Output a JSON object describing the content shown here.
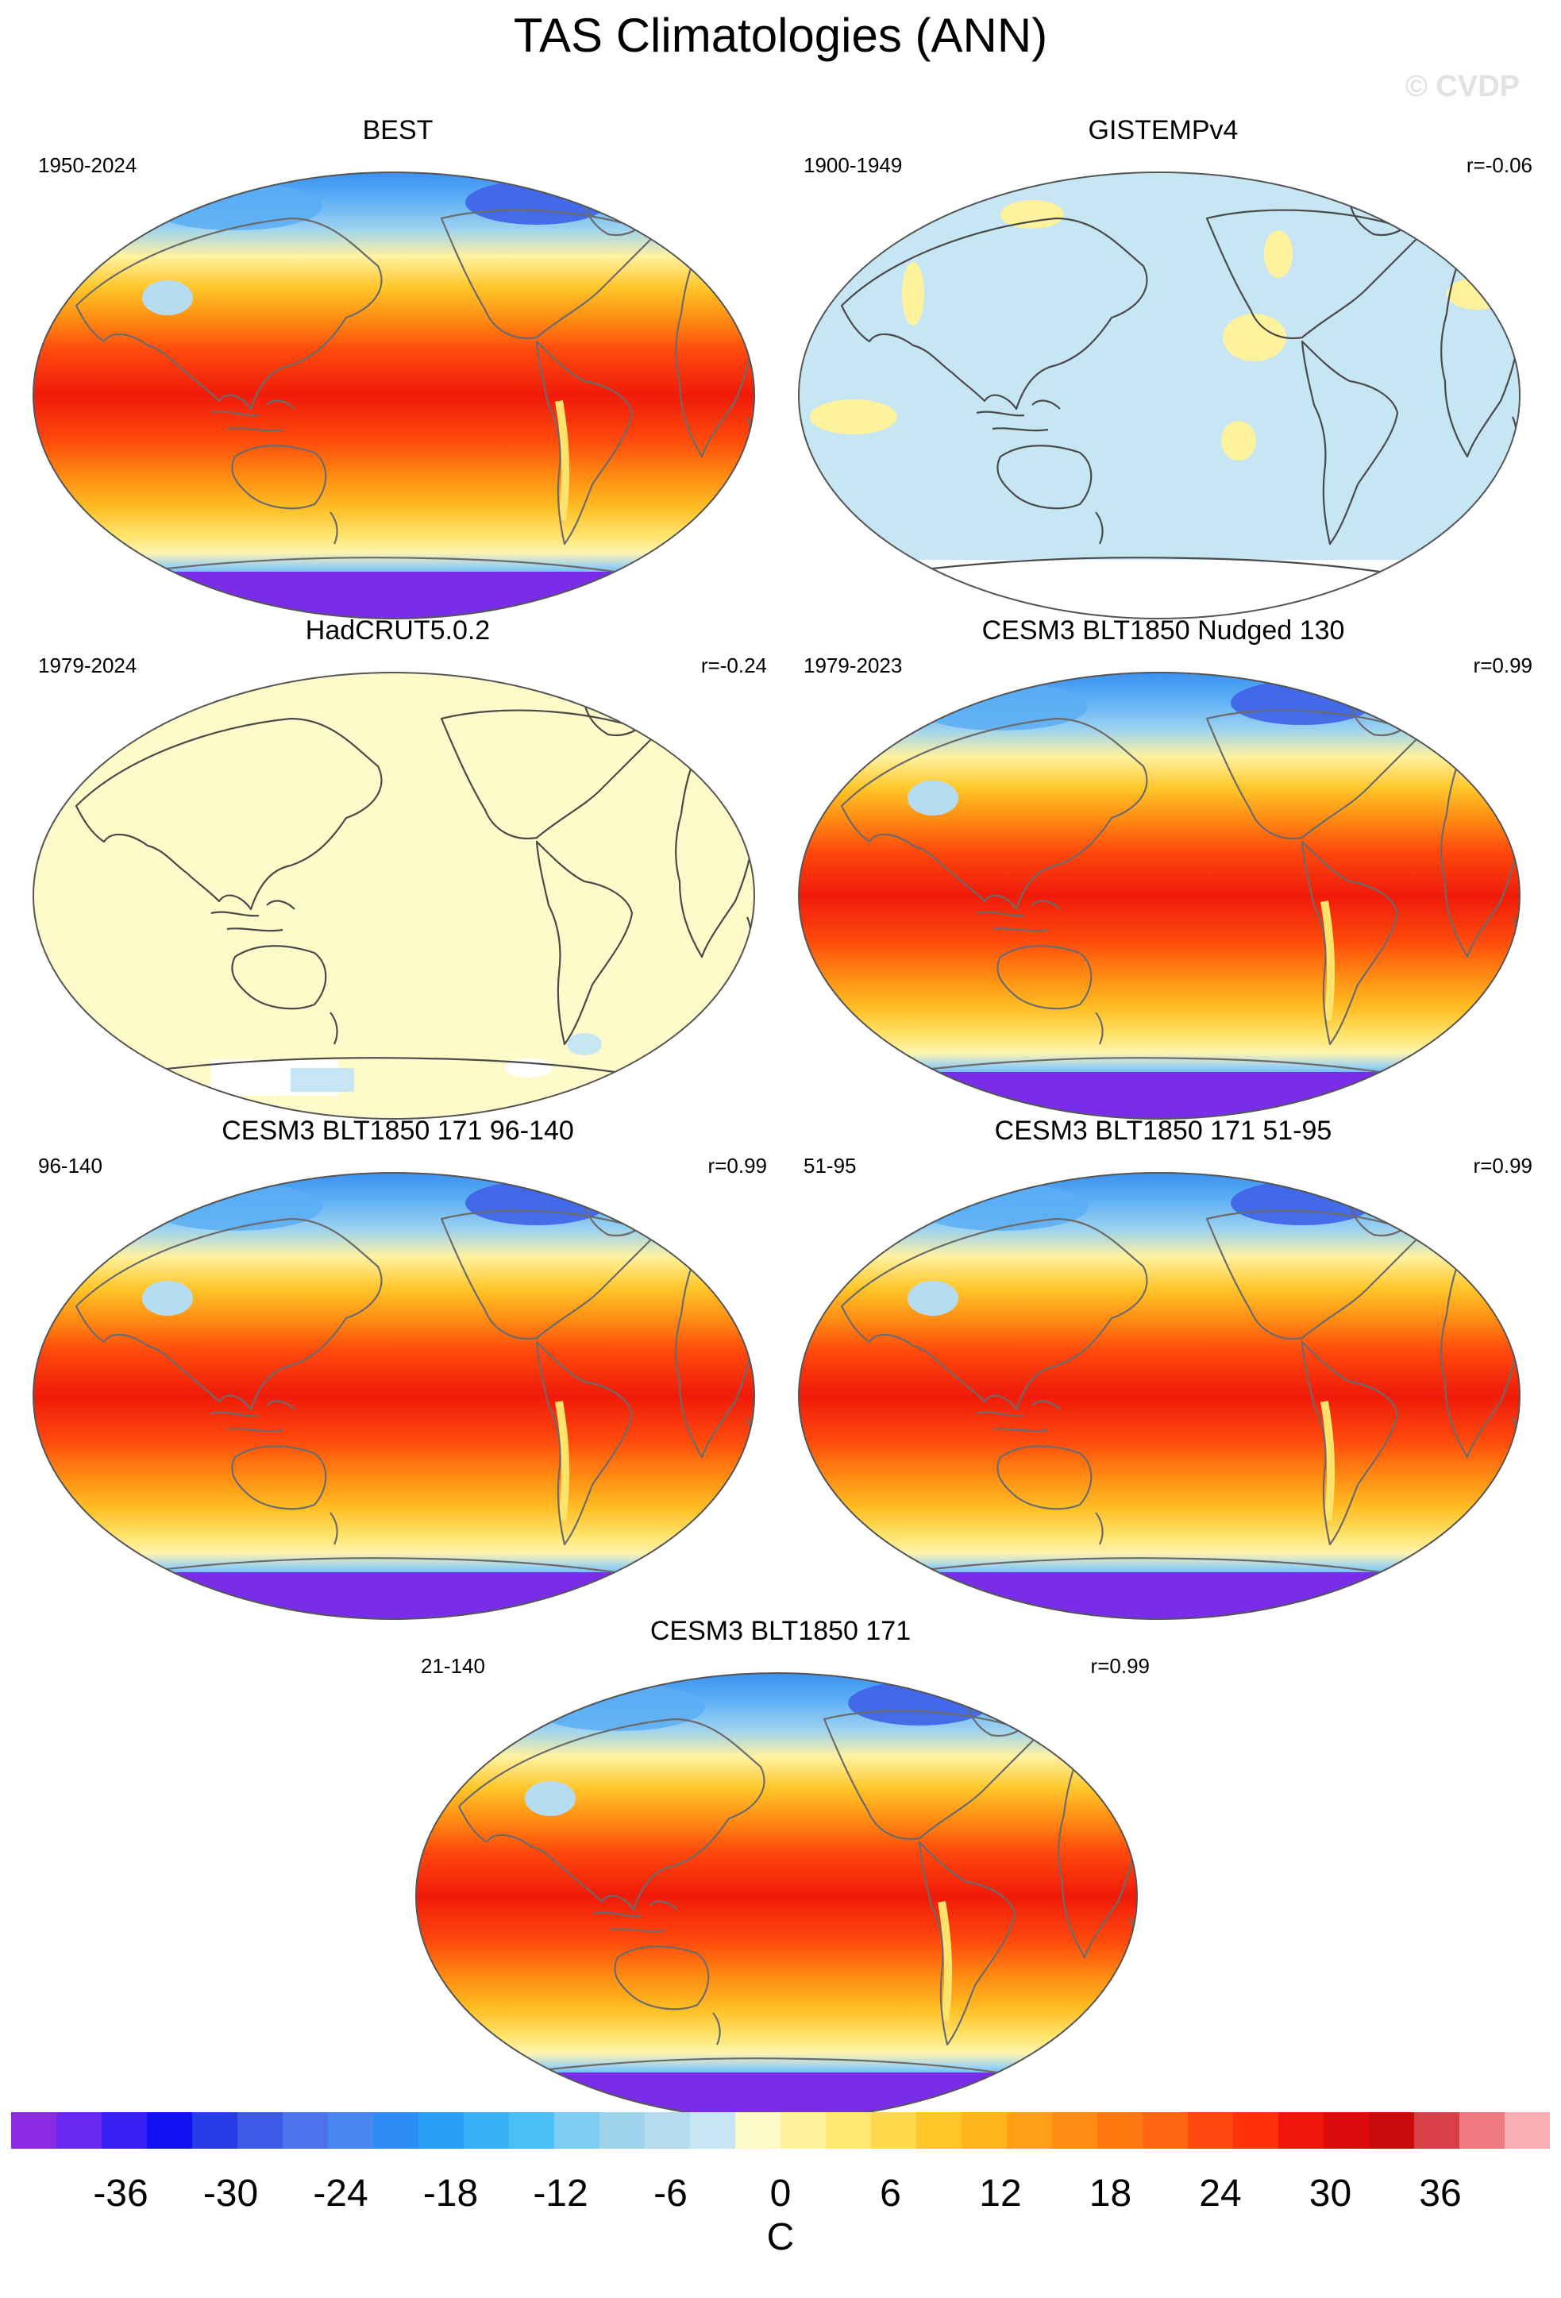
{
  "figure": {
    "title": "TAS Climatologies (ANN)",
    "watermark": "© CVDP",
    "units": "C"
  },
  "panels": [
    {
      "title": "BEST",
      "period": "1950-2024",
      "corr": "",
      "style": "full"
    },
    {
      "title": "GISTEMPv4",
      "period": "1900-1949",
      "corr": "r=-0.06",
      "style": "anomaly-blue"
    },
    {
      "title": "HadCRUT5.0.2",
      "period": "1979-2024",
      "corr": "r=-0.24",
      "style": "anomaly-yellow"
    },
    {
      "title": "CESM3 BLT1850 Nudged 130",
      "period": "1979-2023",
      "corr": "r=0.99",
      "style": "full"
    },
    {
      "title": "CESM3 BLT1850 171 96-140",
      "period": "96-140",
      "corr": "r=0.99",
      "style": "full"
    },
    {
      "title": "CESM3 BLT1850 171 51-95",
      "period": "51-95",
      "corr": "r=0.99",
      "style": "full"
    },
    {
      "title": "CESM3 BLT1850 171",
      "period": "21-140",
      "corr": "r=0.99",
      "style": "full"
    }
  ],
  "colorbar": {
    "tick_labels": [
      "-36",
      "-30",
      "-24",
      "-18",
      "-12",
      "-6",
      "0",
      "6",
      "12",
      "18",
      "24",
      "30",
      "36"
    ],
    "colors": [
      "#8a2be2",
      "#6a28f0",
      "#3a1ff5",
      "#1010f0",
      "#2a3ce8",
      "#3c5ae6",
      "#4c72ec",
      "#4a86f0",
      "#2e8df5",
      "#2a9ff7",
      "#3ab0f7",
      "#4cc0f5",
      "#7dcdf2",
      "#9ed4ee",
      "#b3dcee",
      "#c6e6f3",
      "#fffaca",
      "#fff29d",
      "#ffe773",
      "#ffd94a",
      "#ffc828",
      "#ffb41c",
      "#ffa016",
      "#ff8c12",
      "#ff7810",
      "#ff640e",
      "#ff480c",
      "#ff300a",
      "#f0140a",
      "#dc0a0a",
      "#c80a0a",
      "#d64046",
      "#ec7a80",
      "#f9aeb2"
    ]
  }
}
